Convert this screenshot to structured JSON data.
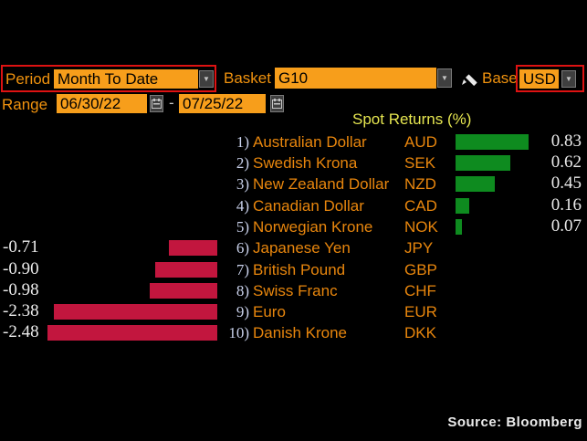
{
  "toolbar": {
    "period_label": "Period",
    "period_value": "Month To Date",
    "basket_label": "Basket",
    "basket_value": "G10",
    "base_label": "Base",
    "base_value": "USD",
    "range_label": "Range",
    "range_start": "06/30/22",
    "range_separator": "-",
    "range_end": "07/25/22"
  },
  "icons": {
    "dropdown_glyph": "▼",
    "dropdown": "dropdown-arrow-icon",
    "calendar": "calendar-icon",
    "edit": "pencil-icon"
  },
  "chart_data": {
    "type": "bar",
    "orientation": "horizontal",
    "title": "Spot Returns (%)",
    "unit": "%",
    "row_numbers": [
      "1)",
      "2)",
      "3)",
      "4)",
      "5)",
      "6)",
      "7)",
      "8)",
      "9)",
      "10)"
    ],
    "categories": [
      "Australian Dollar",
      "Swedish Krona",
      "New Zealand Dollar",
      "Canadian Dollar",
      "Norwegian Krone",
      "Japanese Yen",
      "British Pound",
      "Swiss Franc",
      "Euro",
      "Danish Krone"
    ],
    "codes": [
      "AUD",
      "SEK",
      "NZD",
      "CAD",
      "NOK",
      "JPY",
      "GBP",
      "CHF",
      "EUR",
      "DKK"
    ],
    "values": [
      0.83,
      0.62,
      0.45,
      0.16,
      0.07,
      -0.71,
      -0.9,
      -0.98,
      -2.38,
      -2.48
    ],
    "value_labels": [
      "0.83",
      "0.62",
      "0.45",
      "0.16",
      "0.07",
      "-0.71",
      "-0.90",
      "-0.98",
      "-2.38",
      "-2.48"
    ],
    "positive_color": "#0E8B1F",
    "negative_color": "#C2163E",
    "legend": "none",
    "grid": "off"
  },
  "colors": {
    "background": "#000000",
    "accent_orange": "#F79E1B",
    "label_orange": "#F0920E",
    "highlight_red_border": "#DE1212",
    "title_yellow": "#E6E650",
    "positive_green": "#0E8B1F",
    "negative_red": "#C2163E"
  },
  "source": "Source:  Bloomberg"
}
